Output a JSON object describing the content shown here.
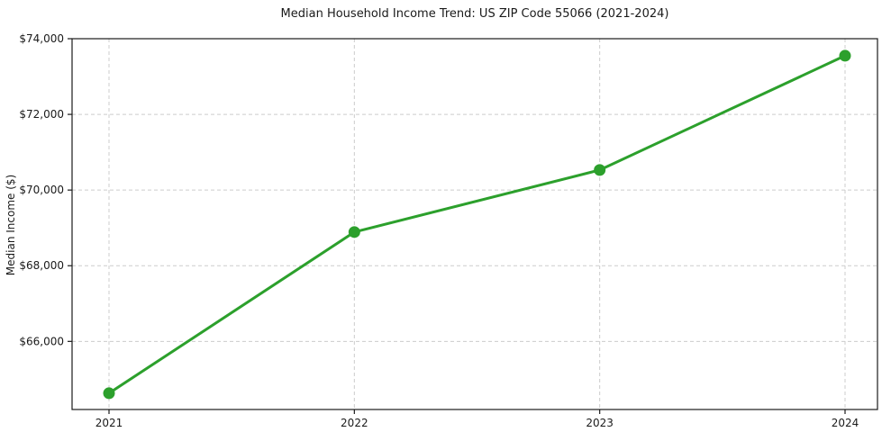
{
  "chart_data": {
    "type": "line",
    "title": "Median Household Income Trend: US ZIP Code 55066 (2021-2024)",
    "xlabel": "",
    "ylabel": "Median Income ($)",
    "categories": [
      "2021",
      "2022",
      "2023",
      "2024"
    ],
    "series": [
      {
        "name": "Median Household Income",
        "values": [
          64630,
          68890,
          70530,
          73550
        ]
      }
    ],
    "ylim": [
      64200,
      74000
    ],
    "yticks": [
      66000,
      68000,
      70000,
      72000,
      74000
    ],
    "ytick_labels": [
      "$66,000",
      "$68,000",
      "$70,000",
      "$72,000",
      "$74,000"
    ],
    "xtick_labels": [
      "2021",
      "2022",
      "2023",
      "2024"
    ],
    "grid": true,
    "grid_style": "dashed",
    "legend": "none",
    "line_color": "#2ca02c",
    "marker_color": "#2ca02c",
    "marker_shape": "circle",
    "grid_color": "#cccccc",
    "background_color": "#ffffff"
  }
}
